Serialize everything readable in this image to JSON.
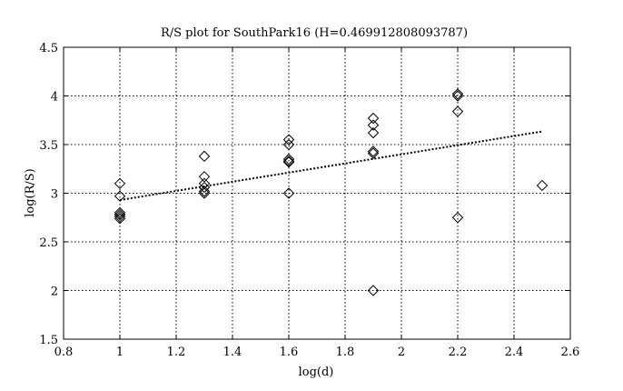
{
  "chart_data": {
    "type": "scatter",
    "title": "R/S plot for SouthPark16 (H=0.469912808093787)",
    "xlabel": "log(d)",
    "ylabel": "log(R/S)",
    "xlim": [
      0.8,
      2.6
    ],
    "ylim": [
      1.5,
      4.5
    ],
    "xticks": [
      0.8,
      1,
      1.2,
      1.4,
      1.6,
      1.8,
      2,
      2.2,
      2.4,
      2.6
    ],
    "xtick_labels": [
      "0.8",
      "1",
      "1.2",
      "1.4",
      "1.6",
      "1.8",
      "2",
      "2.2",
      "2.4",
      "2.6"
    ],
    "yticks": [
      1.5,
      2,
      2.5,
      3,
      3.5,
      4,
      4.5
    ],
    "ytick_labels": [
      "1.5",
      "2",
      "2.5",
      "3",
      "3.5",
      "4",
      "4.5"
    ],
    "grid": true,
    "marker": "diamond",
    "points": [
      [
        1.0,
        3.1
      ],
      [
        1.0,
        2.97
      ],
      [
        1.0,
        2.8
      ],
      [
        1.0,
        2.78
      ],
      [
        1.0,
        2.76
      ],
      [
        1.0,
        2.74
      ],
      [
        1.3,
        3.38
      ],
      [
        1.3,
        3.17
      ],
      [
        1.3,
        3.1
      ],
      [
        1.3,
        3.06
      ],
      [
        1.3,
        3.02
      ],
      [
        1.3,
        3.0
      ],
      [
        1.6,
        3.55
      ],
      [
        1.6,
        3.5
      ],
      [
        1.6,
        3.35
      ],
      [
        1.6,
        3.33
      ],
      [
        1.6,
        3.32
      ],
      [
        1.6,
        3.0
      ],
      [
        1.9,
        3.77
      ],
      [
        1.9,
        3.7
      ],
      [
        1.9,
        3.62
      ],
      [
        1.9,
        3.43
      ],
      [
        1.9,
        3.41
      ],
      [
        1.9,
        2.0
      ],
      [
        2.2,
        4.02
      ],
      [
        2.2,
        4.0
      ],
      [
        2.2,
        3.84
      ],
      [
        2.2,
        2.75
      ],
      [
        2.5,
        3.08
      ]
    ],
    "fit_line": {
      "x": [
        1.0,
        2.5
      ],
      "y": [
        2.93,
        3.635
      ]
    }
  }
}
